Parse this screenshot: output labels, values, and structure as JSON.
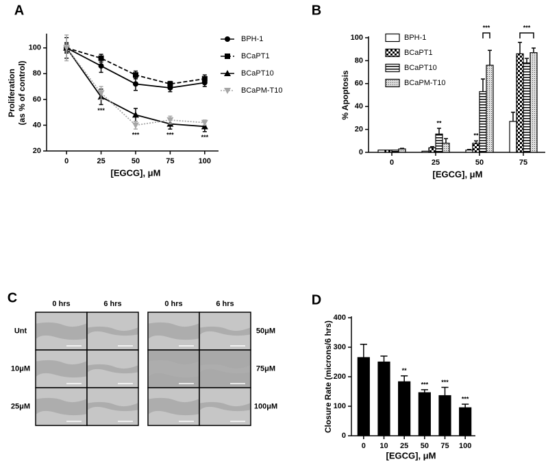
{
  "chart_data": [
    {
      "panel": "A",
      "type": "line",
      "xlabel": "[EGCG], μM",
      "ylabel": [
        "Proliferation",
        "(as % of control)"
      ],
      "x": [
        0,
        25,
        50,
        75,
        100
      ],
      "xlim": [
        -10,
        110
      ],
      "xticks": [
        0,
        25,
        50,
        75,
        100
      ],
      "ylim": [
        20,
        110
      ],
      "yticks": [
        20,
        40,
        60,
        80,
        100
      ],
      "legend": "outside-right",
      "series": [
        {
          "name": "BPH-1",
          "color": "#000000",
          "dash": "solid",
          "marker": "circle",
          "values": [
            100,
            86,
            72,
            69,
            73
          ],
          "errors": [
            3,
            5,
            5,
            3,
            3
          ]
        },
        {
          "name": "BCaPT1",
          "color": "#000000",
          "dash": "dashed",
          "marker": "square",
          "values": [
            100,
            92,
            79,
            72,
            76
          ],
          "errors": [
            4,
            3,
            3,
            2,
            3
          ]
        },
        {
          "name": "BCaPT10",
          "color": "#000000",
          "dash": "solid",
          "marker": "triangle",
          "values": [
            100,
            62,
            48,
            41,
            39
          ],
          "errors": [
            8,
            6,
            5,
            4,
            4
          ]
        },
        {
          "name": "BCaPM-T10",
          "color": "#a6a6a6",
          "dash": "dotted",
          "marker": "triangle-down",
          "values": [
            100,
            65,
            40,
            44,
            42
          ],
          "errors": [
            10,
            5,
            3,
            3,
            2
          ]
        }
      ],
      "annotations": [
        {
          "x": 25,
          "text": "***"
        },
        {
          "x": 50,
          "text": "***"
        },
        {
          "x": 75,
          "text": "***"
        },
        {
          "x": 100,
          "text": "***"
        }
      ]
    },
    {
      "panel": "B",
      "type": "bar",
      "xlabel": "[EGCG], μM",
      "ylabel": "% Apoptosis",
      "categories": [
        "0",
        "25",
        "50",
        "75"
      ],
      "ylim": [
        0,
        100
      ],
      "yticks": [
        0,
        20,
        40,
        60,
        80,
        100
      ],
      "legend": "top-left",
      "series": [
        {
          "name": "BPH-1",
          "color": "#000000",
          "pattern": "none",
          "values": [
            2,
            1,
            2,
            27
          ],
          "errors": [
            0,
            0,
            0.5,
            8
          ]
        },
        {
          "name": "BCaPT1",
          "color": "#000000",
          "pattern": "checker",
          "values": [
            2,
            4,
            8,
            86
          ],
          "errors": [
            0,
            1,
            2,
            10
          ]
        },
        {
          "name": "BCaPT10",
          "color": "#000000",
          "pattern": "hstripe",
          "values": [
            2,
            16,
            53,
            78
          ],
          "errors": [
            0,
            5,
            11,
            4
          ]
        },
        {
          "name": "BCaPM-T10",
          "color": "#000000",
          "pattern": "dots",
          "values": [
            3,
            8,
            76,
            87
          ],
          "errors": [
            0.5,
            4,
            13,
            4
          ]
        }
      ],
      "annotations": [
        {
          "category": "25",
          "series": "BCaPT10",
          "text": "**"
        },
        {
          "category": "50",
          "series": "BCaPT1",
          "text": "**"
        },
        {
          "category": "50",
          "from": "BCaPT10",
          "to": "BCaPM-T10",
          "text": "***"
        },
        {
          "category": "75",
          "from": "BCaPT1",
          "to": "BCaPM-T10",
          "text": "***"
        }
      ]
    },
    {
      "panel": "D",
      "type": "bar",
      "xlabel": "[EGCG], μM",
      "ylabel": "Closure  Rate (microns/6 hrs)",
      "categories": [
        "0",
        "10",
        "25",
        "50",
        "75",
        "100"
      ],
      "values": [
        265,
        250,
        183,
        146,
        136,
        95
      ],
      "errors": [
        45,
        20,
        20,
        10,
        28,
        12
      ],
      "color": "#000000",
      "ylim": [
        0,
        400
      ],
      "yticks": [
        0,
        100,
        200,
        300,
        400
      ],
      "annotations": [
        {
          "category": "25",
          "text": "**"
        },
        {
          "category": "50",
          "text": "***"
        },
        {
          "category": "75",
          "text": "***"
        },
        {
          "category": "100",
          "text": "***"
        }
      ]
    }
  ],
  "image_panel": {
    "panel": "C",
    "groups": [
      {
        "columns": [
          "0 hrs",
          "6 hrs"
        ],
        "rows": [
          "Unt",
          "10μM",
          "25μM"
        ]
      },
      {
        "columns": [
          "0 hrs",
          "6 hrs"
        ],
        "rows": [
          "50μM",
          "75μM",
          "100μM"
        ]
      }
    ]
  }
}
